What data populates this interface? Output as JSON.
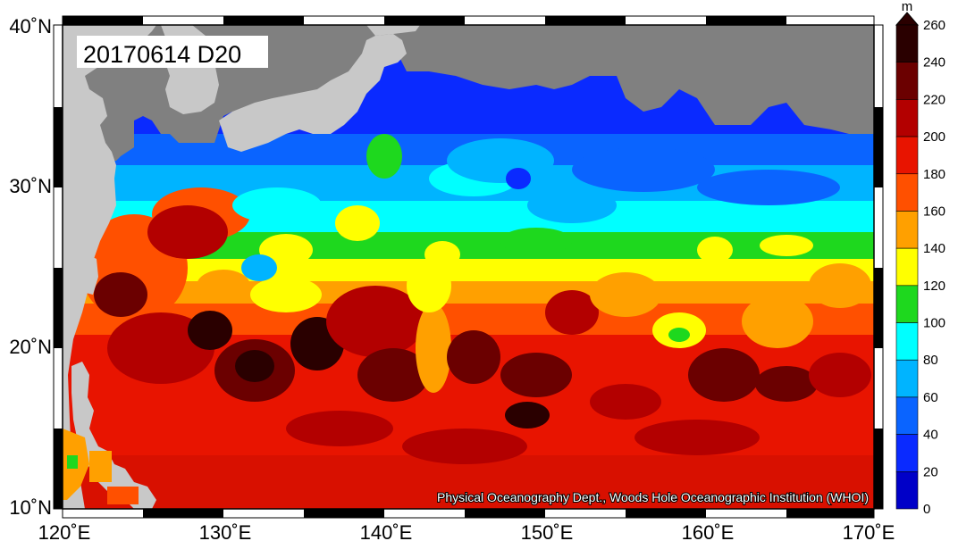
{
  "map": {
    "title": "20170614 D20",
    "credit": "Physical Oceanography Dept., Woods Hole Oceanographic Institution (WHOI)",
    "lon_labels": [
      "120˚E",
      "130˚E",
      "140˚E",
      "150˚E",
      "160˚E",
      "170˚E"
    ],
    "lat_labels": [
      "40˚N",
      "30˚N",
      "20˚N",
      "10˚N"
    ],
    "colorbar": {
      "unit": "m",
      "ticks": [
        "260",
        "240",
        "220",
        "200",
        "180",
        "160",
        "140",
        "120",
        "100",
        "80",
        "60",
        "40",
        "20",
        "0"
      ],
      "colors": [
        "#2a0000",
        "#6b0000",
        "#b30000",
        "#e81400",
        "#ff5000",
        "#ffa000",
        "#ffff00",
        "#1ed81e",
        "#00ffff",
        "#00b4ff",
        "#0a64ff",
        "#0a2aff",
        "#0000c8"
      ]
    },
    "colors": {
      "land": "#c8c8c8",
      "nodata": "#808080"
    }
  }
}
